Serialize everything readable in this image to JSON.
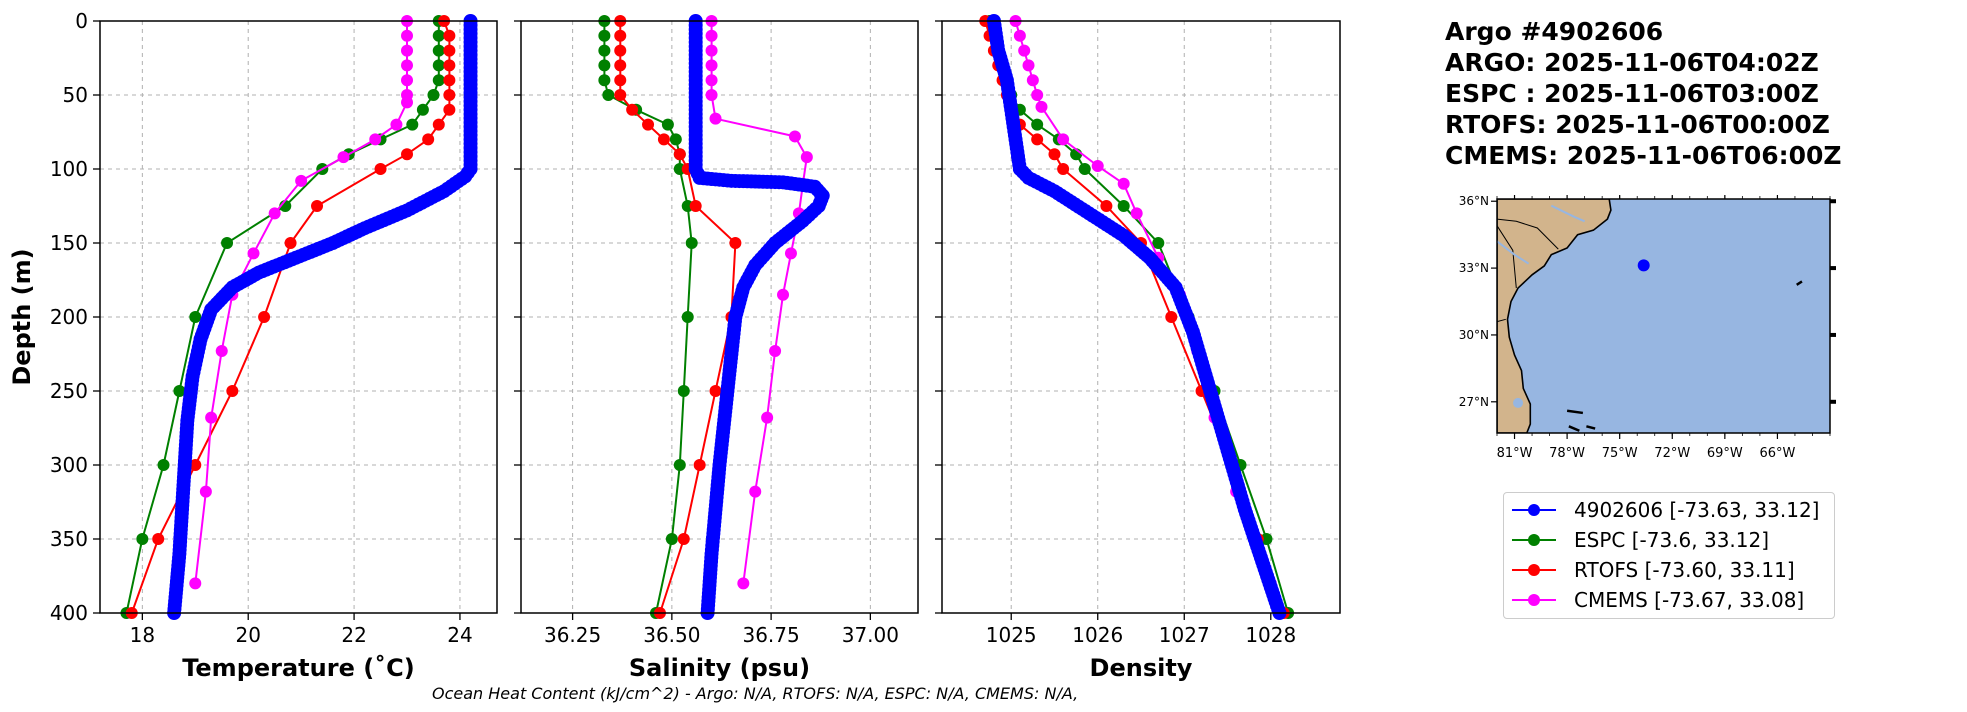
{
  "title_lines": [
    "Argo #4902606",
    "ARGO: 2025-11-06T04:02Z",
    "ESPC : 2025-11-06T03:00Z",
    "RTOFS: 2025-11-06T00:00Z",
    "CMEMS: 2025-11-06T06:00Z"
  ],
  "footnote": "Ocean Heat Content (kJ/cm^2) - Argo: N/A,  RTOFS: N/A,  ESPC: N/A,  CMEMS: N/A,",
  "colors": {
    "argo": "#0000ff",
    "espc": "#008000",
    "rtofs": "#ff0000",
    "cmems": "#ff00ff",
    "land": "#d2b48c",
    "ocean": "#97b6e1",
    "grid": "#b0b0b0"
  },
  "legend": [
    {
      "label": "4902606 [-73.63, 33.12]",
      "series": "argo"
    },
    {
      "label": "ESPC [-73.6, 33.12]",
      "series": "espc"
    },
    {
      "label": "RTOFS [-73.60, 33.11]",
      "series": "rtofs"
    },
    {
      "label": "CMEMS [-73.67, 33.08]",
      "series": "cmems"
    }
  ],
  "chart_data": [
    {
      "type": "line",
      "xlabel": "Temperature (˚C)",
      "ylabel": "Depth (m)",
      "xlim": [
        17.2,
        24.7
      ],
      "ylim": [
        400,
        0
      ],
      "xticks": [
        18,
        20,
        22,
        24
      ],
      "yticks": [
        0,
        50,
        100,
        150,
        200,
        250,
        300,
        350,
        400
      ],
      "series": [
        {
          "name": "ESPC",
          "color_key": "espc",
          "points": [
            [
              23.6,
              0
            ],
            [
              23.6,
              10
            ],
            [
              23.6,
              20
            ],
            [
              23.6,
              30
            ],
            [
              23.6,
              40
            ],
            [
              23.5,
              50
            ],
            [
              23.3,
              60
            ],
            [
              23.1,
              70
            ],
            [
              22.5,
              80
            ],
            [
              21.9,
              90
            ],
            [
              21.4,
              100
            ],
            [
              20.7,
              125
            ],
            [
              19.6,
              150
            ],
            [
              19.0,
              200
            ],
            [
              18.7,
              250
            ],
            [
              18.4,
              300
            ],
            [
              18.0,
              350
            ],
            [
              17.7,
              400
            ]
          ]
        },
        {
          "name": "RTOFS",
          "color_key": "rtofs",
          "points": [
            [
              23.7,
              0
            ],
            [
              23.8,
              10
            ],
            [
              23.8,
              20
            ],
            [
              23.8,
              30
            ],
            [
              23.8,
              40
            ],
            [
              23.8,
              50
            ],
            [
              23.8,
              60
            ],
            [
              23.6,
              70
            ],
            [
              23.4,
              80
            ],
            [
              23.0,
              90
            ],
            [
              22.5,
              100
            ],
            [
              21.3,
              125
            ],
            [
              20.8,
              150
            ],
            [
              20.3,
              200
            ],
            [
              19.7,
              250
            ],
            [
              19.0,
              300
            ],
            [
              18.3,
              350
            ],
            [
              17.8,
              400
            ]
          ]
        },
        {
          "name": "CMEMS",
          "color_key": "cmems",
          "points": [
            [
              23.0,
              0
            ],
            [
              23.0,
              10
            ],
            [
              23.0,
              20
            ],
            [
              23.0,
              30
            ],
            [
              23.0,
              40
            ],
            [
              23.0,
              50
            ],
            [
              23.0,
              55
            ],
            [
              22.8,
              70
            ],
            [
              22.4,
              80
            ],
            [
              21.8,
              92
            ],
            [
              21.0,
              108
            ],
            [
              20.5,
              130
            ],
            [
              20.1,
              157
            ],
            [
              19.7,
              185
            ],
            [
              19.5,
              223
            ],
            [
              19.3,
              268
            ],
            [
              19.2,
              318
            ],
            [
              19.0,
              380
            ]
          ]
        },
        {
          "name": "4902606",
          "color_key": "argo",
          "points": [
            [
              24.2,
              0
            ],
            [
              24.2,
              20
            ],
            [
              24.2,
              40
            ],
            [
              24.2,
              60
            ],
            [
              24.2,
              80
            ],
            [
              24.2,
              100
            ],
            [
              24.1,
              105
            ],
            [
              23.7,
              115
            ],
            [
              23.0,
              128
            ],
            [
              22.2,
              140
            ],
            [
              21.6,
              150
            ],
            [
              20.9,
              160
            ],
            [
              20.2,
              170
            ],
            [
              19.7,
              180
            ],
            [
              19.3,
              195
            ],
            [
              19.1,
              215
            ],
            [
              18.95,
              240
            ],
            [
              18.85,
              270
            ],
            [
              18.8,
              300
            ],
            [
              18.75,
              330
            ],
            [
              18.7,
              360
            ],
            [
              18.6,
              400
            ]
          ]
        }
      ]
    },
    {
      "type": "line",
      "xlabel": "Salinity (psu)",
      "ylabel": "",
      "xlim": [
        36.12,
        37.12
      ],
      "ylim": [
        400,
        0
      ],
      "xticks": [
        "36.25",
        "36.50",
        "36.75",
        "37.00"
      ],
      "xtick_values": [
        36.25,
        36.5,
        36.75,
        37.0
      ],
      "series": [
        {
          "name": "ESPC",
          "color_key": "espc",
          "points": [
            [
              36.33,
              0
            ],
            [
              36.33,
              10
            ],
            [
              36.33,
              20
            ],
            [
              36.33,
              30
            ],
            [
              36.33,
              40
            ],
            [
              36.34,
              50
            ],
            [
              36.41,
              60
            ],
            [
              36.49,
              70
            ],
            [
              36.51,
              80
            ],
            [
              36.52,
              90
            ],
            [
              36.52,
              100
            ],
            [
              36.54,
              125
            ],
            [
              36.55,
              150
            ],
            [
              36.54,
              200
            ],
            [
              36.53,
              250
            ],
            [
              36.52,
              300
            ],
            [
              36.5,
              350
            ],
            [
              36.46,
              400
            ]
          ]
        },
        {
          "name": "RTOFS",
          "color_key": "rtofs",
          "points": [
            [
              36.37,
              0
            ],
            [
              36.37,
              10
            ],
            [
              36.37,
              20
            ],
            [
              36.37,
              30
            ],
            [
              36.37,
              40
            ],
            [
              36.37,
              50
            ],
            [
              36.4,
              60
            ],
            [
              36.44,
              70
            ],
            [
              36.48,
              80
            ],
            [
              36.52,
              90
            ],
            [
              36.54,
              100
            ],
            [
              36.56,
              125
            ],
            [
              36.66,
              150
            ],
            [
              36.65,
              200
            ],
            [
              36.61,
              250
            ],
            [
              36.57,
              300
            ],
            [
              36.53,
              350
            ],
            [
              36.47,
              400
            ]
          ]
        },
        {
          "name": "CMEMS",
          "color_key": "cmems",
          "points": [
            [
              36.6,
              0
            ],
            [
              36.6,
              10
            ],
            [
              36.6,
              20
            ],
            [
              36.6,
              30
            ],
            [
              36.6,
              40
            ],
            [
              36.6,
              50
            ],
            [
              36.61,
              66
            ],
            [
              36.81,
              78
            ],
            [
              36.84,
              92
            ],
            [
              36.83,
              110
            ],
            [
              36.82,
              130
            ],
            [
              36.8,
              157
            ],
            [
              36.78,
              185
            ],
            [
              36.76,
              223
            ],
            [
              36.74,
              268
            ],
            [
              36.71,
              318
            ],
            [
              36.68,
              380
            ]
          ]
        },
        {
          "name": "4902606",
          "color_key": "argo",
          "points": [
            [
              36.56,
              0
            ],
            [
              36.56,
              20
            ],
            [
              36.56,
              40
            ],
            [
              36.56,
              60
            ],
            [
              36.56,
              80
            ],
            [
              36.56,
              100
            ],
            [
              36.57,
              106
            ],
            [
              36.65,
              108
            ],
            [
              36.78,
              109
            ],
            [
              36.86,
              112
            ],
            [
              36.88,
              118
            ],
            [
              36.87,
              125
            ],
            [
              36.83,
              135
            ],
            [
              36.76,
              150
            ],
            [
              36.71,
              165
            ],
            [
              36.68,
              180
            ],
            [
              36.66,
              200
            ],
            [
              36.65,
              225
            ],
            [
              36.64,
              250
            ],
            [
              36.63,
              275
            ],
            [
              36.62,
              300
            ],
            [
              36.61,
              330
            ],
            [
              36.6,
              360
            ],
            [
              36.59,
              400
            ]
          ]
        }
      ]
    },
    {
      "type": "line",
      "xlabel": "Density",
      "ylabel": "",
      "xlim": [
        1024.2,
        1028.8
      ],
      "ylim": [
        400,
        0
      ],
      "xticks": [
        1025,
        1026,
        1027,
        1028
      ],
      "series": [
        {
          "name": "ESPC",
          "color_key": "espc",
          "points": [
            [
              1024.75,
              0
            ],
            [
              1024.8,
              10
            ],
            [
              1024.85,
              20
            ],
            [
              1024.9,
              30
            ],
            [
              1024.95,
              40
            ],
            [
              1025.0,
              50
            ],
            [
              1025.1,
              60
            ],
            [
              1025.3,
              70
            ],
            [
              1025.55,
              80
            ],
            [
              1025.75,
              90
            ],
            [
              1025.85,
              100
            ],
            [
              1026.3,
              125
            ],
            [
              1026.7,
              150
            ],
            [
              1027.05,
              200
            ],
            [
              1027.35,
              250
            ],
            [
              1027.65,
              300
            ],
            [
              1027.95,
              350
            ],
            [
              1028.2,
              400
            ]
          ]
        },
        {
          "name": "RTOFS",
          "color_key": "rtofs",
          "points": [
            [
              1024.7,
              0
            ],
            [
              1024.75,
              10
            ],
            [
              1024.8,
              20
            ],
            [
              1024.85,
              30
            ],
            [
              1024.9,
              40
            ],
            [
              1024.95,
              50
            ],
            [
              1025.0,
              60
            ],
            [
              1025.1,
              70
            ],
            [
              1025.3,
              80
            ],
            [
              1025.5,
              90
            ],
            [
              1025.6,
              100
            ],
            [
              1026.1,
              125
            ],
            [
              1026.5,
              150
            ],
            [
              1026.85,
              200
            ],
            [
              1027.2,
              250
            ],
            [
              1027.55,
              300
            ],
            [
              1027.85,
              350
            ],
            [
              1028.15,
              400
            ]
          ]
        },
        {
          "name": "CMEMS",
          "color_key": "cmems",
          "points": [
            [
              1025.05,
              0
            ],
            [
              1025.1,
              10
            ],
            [
              1025.15,
              20
            ],
            [
              1025.2,
              30
            ],
            [
              1025.25,
              40
            ],
            [
              1025.3,
              50
            ],
            [
              1025.35,
              58
            ],
            [
              1025.6,
              80
            ],
            [
              1026.0,
              98
            ],
            [
              1026.3,
              110
            ],
            [
              1026.45,
              130
            ],
            [
              1026.7,
              160
            ],
            [
              1026.95,
              185
            ],
            [
              1027.15,
              223
            ],
            [
              1027.35,
              268
            ],
            [
              1027.6,
              318
            ],
            [
              1028.0,
              380
            ]
          ]
        },
        {
          "name": "4902606",
          "color_key": "argo",
          "points": [
            [
              1024.8,
              0
            ],
            [
              1024.85,
              20
            ],
            [
              1024.95,
              40
            ],
            [
              1025.0,
              60
            ],
            [
              1025.05,
              80
            ],
            [
              1025.1,
              100
            ],
            [
              1025.2,
              106
            ],
            [
              1025.5,
              115
            ],
            [
              1025.9,
              130
            ],
            [
              1026.3,
              145
            ],
            [
              1026.6,
              160
            ],
            [
              1026.9,
              180
            ],
            [
              1027.1,
              210
            ],
            [
              1027.3,
              250
            ],
            [
              1027.5,
              290
            ],
            [
              1027.7,
              330
            ],
            [
              1027.9,
              365
            ],
            [
              1028.1,
              400
            ]
          ]
        }
      ]
    },
    {
      "type": "map",
      "lon_ticks": [
        "81°W",
        "78°W",
        "75°W",
        "72°W",
        "69°W",
        "66°W"
      ],
      "lon_tick_values": [
        -81,
        -78,
        -75,
        -72,
        -69,
        -66
      ],
      "lat_ticks": [
        "36°N",
        "33°N",
        "30°N",
        "27°N"
      ],
      "lat_tick_values": [
        36,
        33,
        30,
        27
      ],
      "lon_range": [
        -82,
        -63
      ],
      "lat_range": [
        25.6,
        36.1
      ],
      "marker": {
        "lon": -73.63,
        "lat": 33.12,
        "color_key": "argo"
      }
    }
  ]
}
